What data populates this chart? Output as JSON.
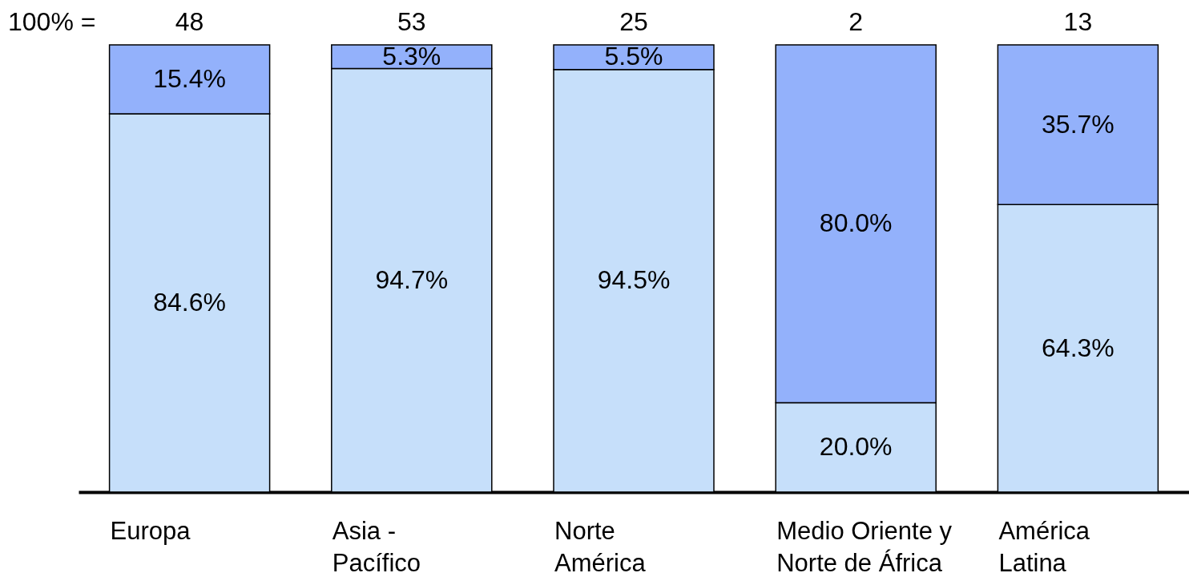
{
  "chart_data": {
    "type": "bar",
    "stacked": true,
    "categories": [
      "Europa",
      "Asia -\nPacífico",
      "Norte\nAmérica",
      "Medio Oriente y\nNorte de África",
      "América\nLatina"
    ],
    "series": [
      {
        "color": "#c6dffa",
        "values": [
          84.6,
          94.7,
          94.5,
          20.0,
          64.3
        ],
        "value_labels": [
          "84.6%",
          "94.7%",
          "94.5%",
          "20.0%",
          "64.3%"
        ]
      },
      {
        "color": "#93b1fb",
        "values": [
          15.4,
          5.3,
          5.5,
          80.0,
          35.7
        ],
        "value_labels": [
          "15.4%",
          "5.3%",
          "5.5%",
          "80.0%",
          "35.7%"
        ]
      }
    ],
    "annotations": [
      "100% =",
      "48",
      "53",
      "25",
      "2",
      "13"
    ]
  }
}
